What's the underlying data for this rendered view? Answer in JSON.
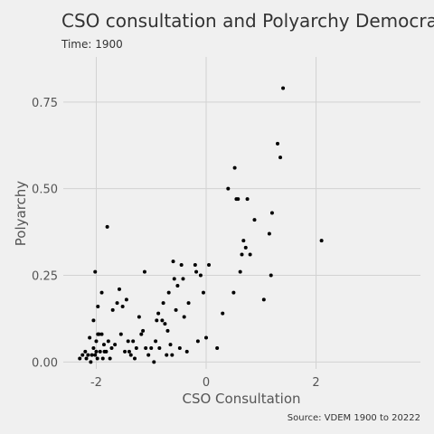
{
  "chart_data": {
    "type": "scatter",
    "title": "CSO consultation and Polyarchy Democracy",
    "subtitle": "Time: 1900",
    "xlabel": "CSO Consultation",
    "ylabel": "Polyarchy",
    "caption": "Source: VDEM 1900 to 20222",
    "xlim": [
      -2.6,
      3.9
    ],
    "ylim": [
      -0.02,
      0.88
    ],
    "xticks": [
      -2,
      0,
      2
    ],
    "xtick_labels": [
      "-2",
      "0",
      "2"
    ],
    "yticks": [
      0,
      0.25,
      0.5,
      0.75
    ],
    "ytick_labels": [
      "0.00",
      "0.25",
      "0.50",
      "0.75"
    ],
    "grid": true,
    "marker_color": "#000000",
    "points": [
      [
        -2.3,
        0.01
      ],
      [
        -2.25,
        0.02
      ],
      [
        -2.2,
        0.03
      ],
      [
        -2.18,
        0.01
      ],
      [
        -2.15,
        0.02
      ],
      [
        -2.12,
        0.07
      ],
      [
        -2.1,
        0.0
      ],
      [
        -2.08,
        0.02
      ],
      [
        -2.05,
        0.04
      ],
      [
        -2.02,
        0.02
      ],
      [
        -2.0,
        0.03
      ],
      [
        -1.98,
        0.01
      ],
      [
        -1.95,
        0.08
      ],
      [
        -1.93,
        0.03
      ],
      [
        -1.9,
        0.08
      ],
      [
        -1.88,
        0.01
      ],
      [
        -1.86,
        0.05
      ],
      [
        -1.85,
        0.03
      ],
      [
        -2.0,
        0.06
      ],
      [
        -1.97,
        0.08
      ],
      [
        -2.05,
        0.12
      ],
      [
        -2.02,
        0.26
      ],
      [
        -1.97,
        0.16
      ],
      [
        -1.9,
        0.2
      ],
      [
        -1.8,
        0.39
      ],
      [
        -1.82,
        0.03
      ],
      [
        -1.78,
        0.06
      ],
      [
        -1.75,
        0.01
      ],
      [
        -1.72,
        0.04
      ],
      [
        -1.7,
        0.15
      ],
      [
        -1.66,
        0.05
      ],
      [
        -1.62,
        0.17
      ],
      [
        -1.58,
        0.21
      ],
      [
        -1.55,
        0.08
      ],
      [
        -1.52,
        0.16
      ],
      [
        -1.48,
        0.03
      ],
      [
        -1.45,
        0.18
      ],
      [
        -1.42,
        0.06
      ],
      [
        -1.4,
        0.03
      ],
      [
        -1.37,
        0.02
      ],
      [
        -1.33,
        0.06
      ],
      [
        -1.3,
        0.01
      ],
      [
        -1.27,
        0.04
      ],
      [
        -1.22,
        0.13
      ],
      [
        -1.18,
        0.08
      ],
      [
        -1.15,
        0.09
      ],
      [
        -1.12,
        0.26
      ],
      [
        -1.1,
        0.04
      ],
      [
        -1.05,
        0.02
      ],
      [
        -1.0,
        0.04
      ],
      [
        -0.95,
        0.0
      ],
      [
        -0.92,
        0.06
      ],
      [
        -0.9,
        0.12
      ],
      [
        -0.87,
        0.14
      ],
      [
        -0.85,
        0.04
      ],
      [
        -0.8,
        0.12
      ],
      [
        -0.78,
        0.17
      ],
      [
        -0.75,
        0.11
      ],
      [
        -0.72,
        0.02
      ],
      [
        -0.7,
        0.09
      ],
      [
        -0.68,
        0.2
      ],
      [
        -0.65,
        0.05
      ],
      [
        -0.62,
        0.02
      ],
      [
        -0.6,
        0.29
      ],
      [
        -0.58,
        0.24
      ],
      [
        -0.55,
        0.15
      ],
      [
        -0.52,
        0.22
      ],
      [
        -0.48,
        0.04
      ],
      [
        -0.45,
        0.28
      ],
      [
        -0.42,
        0.24
      ],
      [
        -0.4,
        0.13
      ],
      [
        -0.35,
        0.03
      ],
      [
        -0.32,
        0.17
      ],
      [
        -0.2,
        0.28
      ],
      [
        -0.18,
        0.26
      ],
      [
        -0.15,
        0.06
      ],
      [
        -0.1,
        0.25
      ],
      [
        -0.05,
        0.2
      ],
      [
        0.0,
        0.07
      ],
      [
        0.05,
        0.28
      ],
      [
        0.2,
        0.04
      ],
      [
        0.3,
        0.14
      ],
      [
        0.4,
        0.5
      ],
      [
        0.5,
        0.2
      ],
      [
        0.52,
        0.56
      ],
      [
        0.55,
        0.47
      ],
      [
        0.58,
        0.47
      ],
      [
        0.62,
        0.26
      ],
      [
        0.65,
        0.31
      ],
      [
        0.68,
        0.35
      ],
      [
        0.72,
        0.33
      ],
      [
        0.75,
        0.47
      ],
      [
        0.8,
        0.31
      ],
      [
        0.88,
        0.41
      ],
      [
        1.05,
        0.18
      ],
      [
        1.15,
        0.37
      ],
      [
        1.18,
        0.25
      ],
      [
        1.2,
        0.43
      ],
      [
        1.3,
        0.63
      ],
      [
        1.35,
        0.59
      ],
      [
        1.4,
        0.79
      ],
      [
        2.1,
        0.35
      ]
    ]
  }
}
